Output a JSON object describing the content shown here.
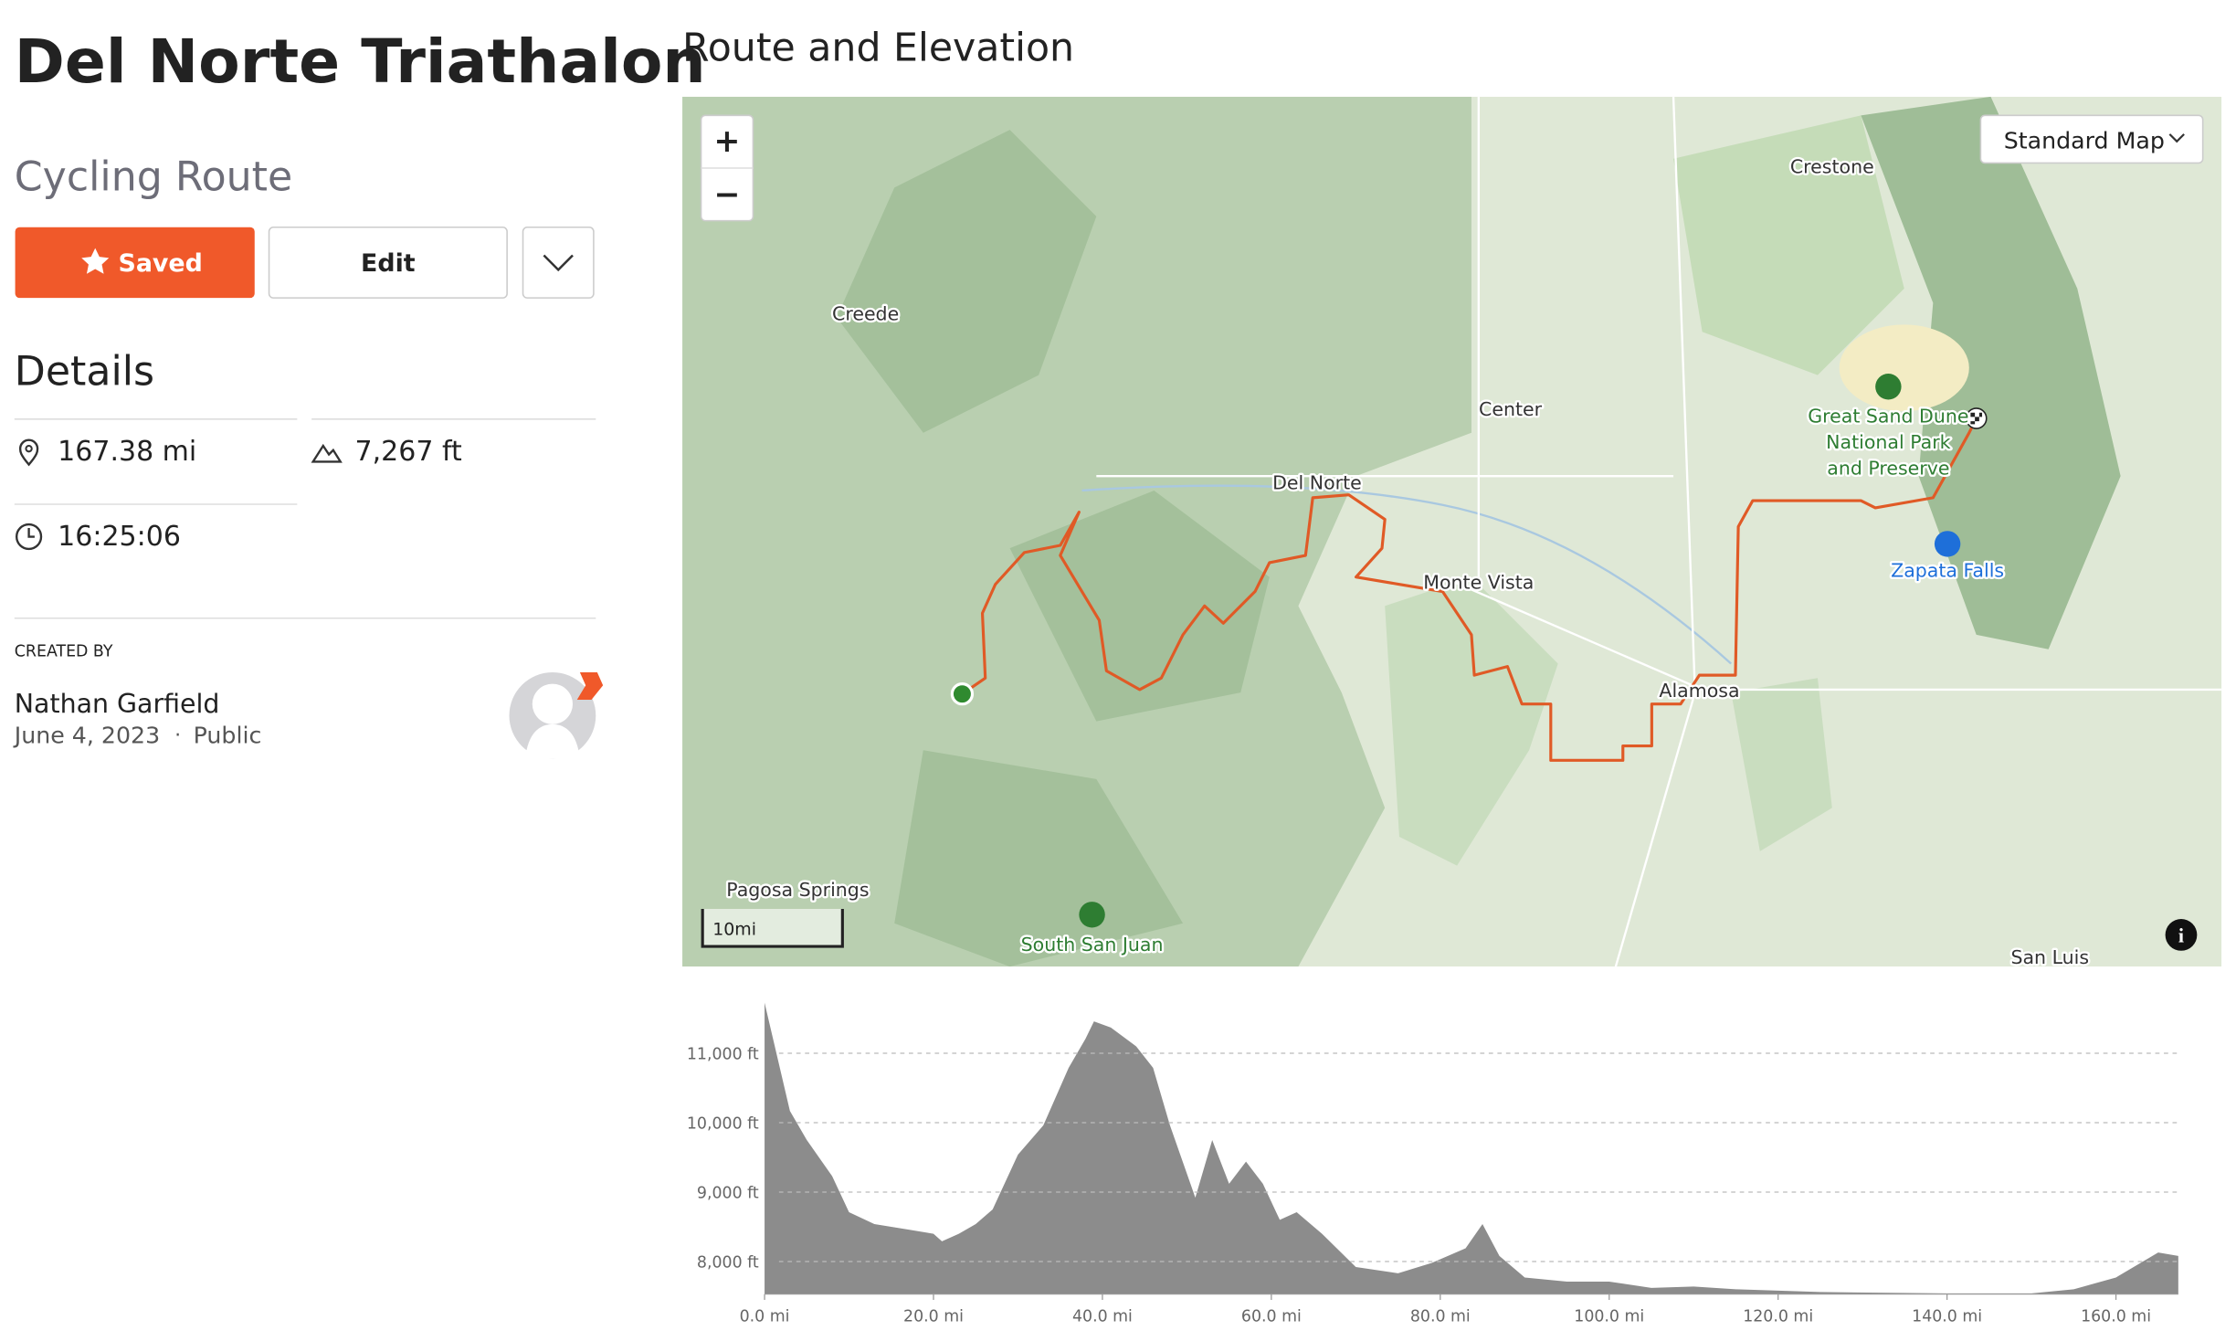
{
  "header": {
    "title": "Del Norte Triathalon",
    "subtitle": "Cycling Route"
  },
  "buttons": {
    "saved": "Saved",
    "edit": "Edit"
  },
  "details": {
    "heading": "Details",
    "distance": "167.38 mi",
    "elevation": "7,267 ft",
    "time": "16:25:06"
  },
  "creator": {
    "label": "CREATED BY",
    "name": "Nathan Garfield",
    "date": "June 4, 2023",
    "visibility": "Public"
  },
  "route_section": {
    "title": "Route and Elevation"
  },
  "map": {
    "style_selector": "Standard Map",
    "zoom_in": "+",
    "zoom_out": "−",
    "scale": "10mi",
    "labels": [
      "Creede",
      "Center",
      "Del Norte",
      "Monte Vista",
      "Alamosa",
      "Crestone",
      "Pagosa Springs",
      "San Luis"
    ],
    "park_labels": [
      "Great Sand Dune",
      "National Park",
      "and Preserve",
      "South San Juan",
      "Zapata Falls"
    ]
  },
  "chart_data": {
    "type": "area",
    "color": "#8c8c8c",
    "x": [
      0,
      1,
      3,
      5,
      8,
      10,
      13,
      17,
      20,
      21,
      23,
      25,
      27,
      30,
      33,
      36,
      38,
      39,
      41,
      44,
      46,
      48,
      51,
      53,
      55,
      57,
      59,
      61,
      63,
      66,
      70,
      75,
      79,
      83,
      85,
      87,
      90,
      95,
      100,
      105,
      110,
      115,
      125,
      140,
      150,
      155,
      160,
      165,
      167.38
    ],
    "values": [
      11730,
      11210,
      10170,
      9750,
      9230,
      8710,
      8540,
      8460,
      8400,
      8290,
      8400,
      8540,
      8750,
      9540,
      9960,
      10790,
      11210,
      11460,
      11370,
      11100,
      10790,
      9960,
      8920,
      9750,
      9120,
      9440,
      9120,
      8600,
      8710,
      8400,
      7920,
      7830,
      7980,
      8190,
      8540,
      8080,
      7770,
      7710,
      7710,
      7620,
      7640,
      7600,
      7560,
      7540,
      7540,
      7600,
      7770,
      8130,
      8080
    ],
    "xlim": [
      0,
      167.38
    ],
    "ylim": [
      7530,
      11750
    ],
    "xticks": [
      {
        "value": 0,
        "label": "0.0 mi"
      },
      {
        "value": 20,
        "label": "20.0 mi"
      },
      {
        "value": 40,
        "label": "40.0 mi"
      },
      {
        "value": 60,
        "label": "60.0 mi"
      },
      {
        "value": 80,
        "label": "80.0 mi"
      },
      {
        "value": 100,
        "label": "100.0 mi"
      },
      {
        "value": 120,
        "label": "120.0 mi"
      },
      {
        "value": 140,
        "label": "140.0 mi"
      },
      {
        "value": 160,
        "label": "160.0 mi"
      }
    ],
    "yticks": [
      {
        "value": 8000,
        "label": "8,000 ft"
      },
      {
        "value": 9000,
        "label": "9,000 ft"
      },
      {
        "value": 10000,
        "label": "10,000 ft"
      },
      {
        "value": 11000,
        "label": "11,000 ft"
      }
    ],
    "grid": true
  }
}
